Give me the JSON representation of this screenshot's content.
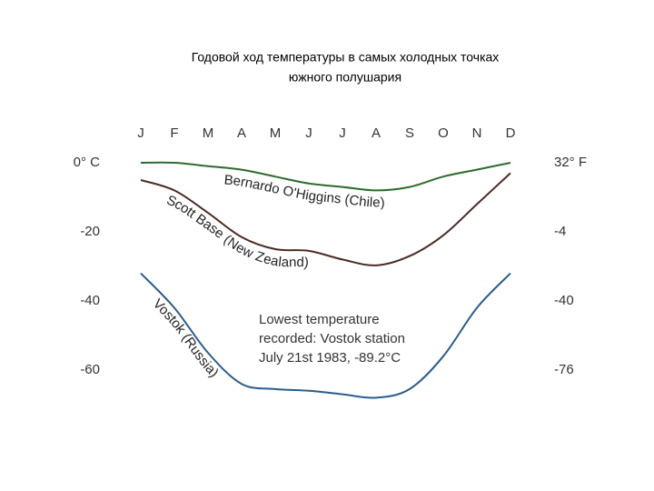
{
  "chart_data": {
    "type": "line",
    "title": [
      "Годовой ход температуры в самых холодных точках",
      "южного полушария"
    ],
    "categories": [
      "J",
      "F",
      "M",
      "A",
      "M",
      "J",
      "J",
      "A",
      "S",
      "O",
      "N",
      "D"
    ],
    "series": [
      {
        "name": "Bernardo O'Higgins (Chile)",
        "color": "#2e6b2e",
        "values": [
          0,
          0,
          -1,
          -2,
          -4,
          -6,
          -7,
          -8,
          -7,
          -4,
          -2,
          0
        ]
      },
      {
        "name": "Scott Base (New Zealand)",
        "color": "#4a2b24",
        "values": [
          -5,
          -8,
          -14.5,
          -21.5,
          -25,
          -25.5,
          -28,
          -29.7,
          -27,
          -21,
          -12,
          -3
        ]
      },
      {
        "name": "Vostok (Russia)",
        "color": "#2a5d8c",
        "values": [
          -32,
          -42,
          -55,
          -64,
          -65.5,
          -66,
          -67,
          -68,
          -65.5,
          -56,
          -42,
          -32
        ]
      }
    ],
    "ylim": [
      -70,
      5
    ],
    "yticks": [
      {
        "value": 0,
        "label": "0° C"
      },
      -20,
      -40,
      -60
    ],
    "y2lim": [
      -94,
      41
    ],
    "y2ticks": [
      {
        "value": 32,
        "label": "32° F"
      },
      -4,
      -40,
      -76
    ],
    "annotations": [
      "Lowest temperature",
      "recorded: Vostok station",
      "July 21st 1983, -89.2°C"
    ]
  }
}
